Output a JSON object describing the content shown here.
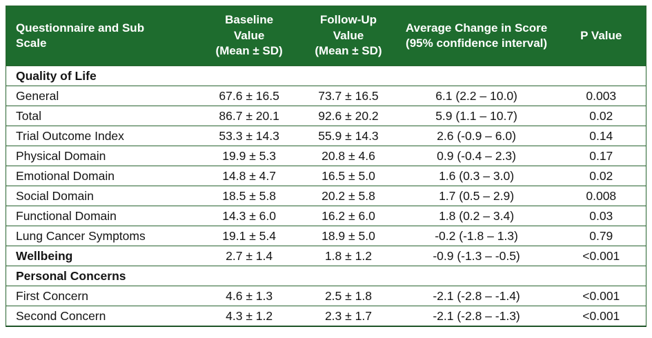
{
  "colors": {
    "header_bg": "#1e6c2e",
    "header_text": "#ffffff",
    "grid_line": "#27632f",
    "bottom_border": "#1d5326",
    "body_text": "#141414",
    "page_bg": "#ffffff"
  },
  "table": {
    "columns": [
      {
        "label": "Questionnaire and Sub\nScale"
      },
      {
        "label": "Baseline\nValue\n(Mean ± SD)"
      },
      {
        "label": "Follow-Up\nValue\n(Mean ± SD)"
      },
      {
        "label": "Average Change in Score\n(95% confidence interval)"
      },
      {
        "label": "P Value"
      }
    ],
    "rows": [
      {
        "type": "section",
        "label": "Quality of Life"
      },
      {
        "type": "data",
        "label": "General",
        "baseline": "67.6 ± 16.5",
        "followup": "73.7 ± 16.5",
        "change": "6.1 (2.2 – 10.0)",
        "p": "0.003"
      },
      {
        "type": "data",
        "label": "Total",
        "baseline": "86.7 ± 20.1",
        "followup": "92.6 ± 20.2",
        "change": "5.9 (1.1 – 10.7)",
        "p": "0.02"
      },
      {
        "type": "data",
        "label": "Trial Outcome Index",
        "baseline": "53.3 ± 14.3",
        "followup": "55.9 ± 14.3",
        "change": "2.6 (-0.9 – 6.0)",
        "p": "0.14"
      },
      {
        "type": "data",
        "label": "Physical Domain",
        "baseline": "19.9 ± 5.3",
        "followup": "20.8 ± 4.6",
        "change": "0.9 (-0.4 – 2.3)",
        "p": "0.17"
      },
      {
        "type": "data",
        "label": "Emotional Domain",
        "baseline": "14.8 ± 4.7",
        "followup": "16.5 ± 5.0",
        "change": "1.6 (0.3 – 3.0)",
        "p": "0.02"
      },
      {
        "type": "data",
        "label": "Social Domain",
        "baseline": "18.5 ± 5.8",
        "followup": "20.2 ± 5.8",
        "change": "1.7 (0.5 – 2.9)",
        "p": "0.008"
      },
      {
        "type": "data",
        "label": "Functional Domain",
        "baseline": "14.3 ± 6.0",
        "followup": "16.2 ± 6.0",
        "change": "1.8 (0.2 – 3.4)",
        "p": "0.03"
      },
      {
        "type": "data",
        "label": "Lung Cancer Symptoms",
        "baseline": "19.1 ± 5.4",
        "followup": "18.9 ± 5.0",
        "change": "-0.2 (-1.8 – 1.3)",
        "p": "0.79"
      },
      {
        "type": "data",
        "bold": true,
        "label": "Wellbeing",
        "baseline": "2.7 ± 1.4",
        "followup": "1.8 ± 1.2",
        "change": "-0.9 (-1.3 – -0.5)",
        "p": "<0.001"
      },
      {
        "type": "section",
        "label": "Personal Concerns"
      },
      {
        "type": "data",
        "label": "First Concern",
        "baseline": "4.6 ± 1.3",
        "followup": "2.5 ± 1.8",
        "change": "-2.1 (-2.8 – -1.4)",
        "p": "<0.001"
      },
      {
        "type": "data",
        "label": "Second Concern",
        "baseline": "4.3 ± 1.2",
        "followup": "2.3 ± 1.7",
        "change": "-2.1 (-2.8 – -1.3)",
        "p": "<0.001"
      }
    ]
  }
}
